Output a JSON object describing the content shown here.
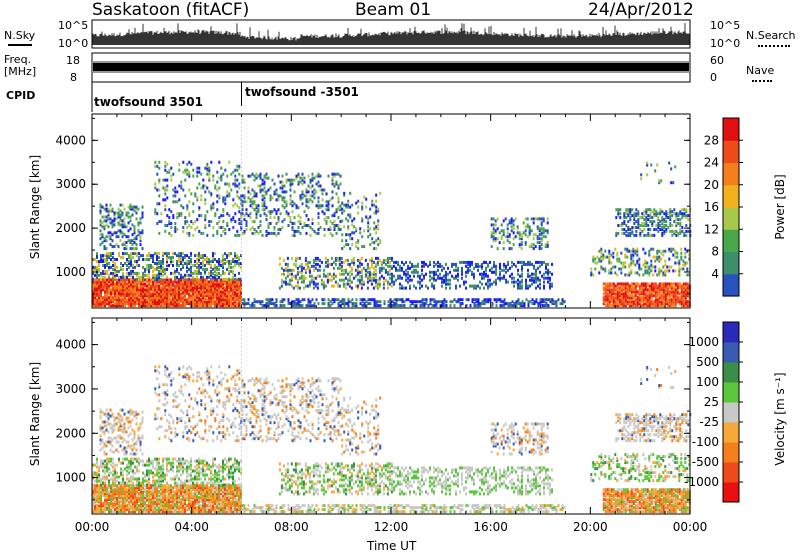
{
  "header": {
    "station": "Saskatoon (fitACF)",
    "beam": "Beam 01",
    "date": "24/Apr/2012"
  },
  "top_panels": {
    "nsky_label": "N.Sky",
    "nsky_ticks": [
      "10^5",
      "10^0"
    ],
    "nsearch_label": "N.Search",
    "nsearch_ticks": [
      "10^5",
      "10^0"
    ],
    "freq_label_line1": "Freq.",
    "freq_label_line2": "[MHz]",
    "freq_ticks": [
      "18",
      "8"
    ],
    "nave_label": "Nave",
    "nave_ticks": [
      "60",
      "0"
    ],
    "cpid_label": "CPID",
    "cpid_entries": [
      "twofsound 3501",
      "twofsound -3501"
    ]
  },
  "colors": {
    "power_scale": [
      "#1a1aff",
      "#2a52be",
      "#3e8e6e",
      "#4aa84a",
      "#a8c84a",
      "#f2b21c",
      "#f57f1a",
      "#ef4a1a",
      "#e01010"
    ],
    "velocity_scale": [
      "#e81010",
      "#f04a1a",
      "#f57f1a",
      "#f8a838",
      "#c8c8c8",
      "#5ac83a",
      "#3a8e4a",
      "#3a5cb0",
      "#2a2ab8"
    ]
  },
  "chart_data": [
    {
      "type": "heatmap",
      "name": "power",
      "xlabel": "",
      "ylabel": "Slant Range [km]",
      "x_ticks": [
        "00:00",
        "04:00",
        "08:00",
        "12:00",
        "16:00",
        "20:00",
        "00:00"
      ],
      "y_ticks": [
        1000,
        2000,
        3000,
        4000
      ],
      "xlim": [
        0,
        24
      ],
      "ylim": [
        180,
        4600
      ],
      "colorbar_label": "Power [dB]",
      "colorbar_ticks": [
        4,
        8,
        12,
        16,
        20,
        24,
        28
      ],
      "colorbar_range": [
        0,
        30
      ]
    },
    {
      "type": "heatmap",
      "name": "velocity",
      "xlabel": "Time UT",
      "ylabel": "Slant Range [km]",
      "x_ticks": [
        "00:00",
        "04:00",
        "08:00",
        "12:00",
        "16:00",
        "20:00",
        "00:00"
      ],
      "y_ticks": [
        1000,
        2000,
        3000,
        4000
      ],
      "xlim": [
        0,
        24
      ],
      "ylim": [
        180,
        4600
      ],
      "colorbar_label": "Velocity [m s⁻¹]",
      "colorbar_ticks": [
        1000,
        500,
        100,
        25,
        -25,
        -100,
        -500,
        -1000
      ]
    }
  ]
}
